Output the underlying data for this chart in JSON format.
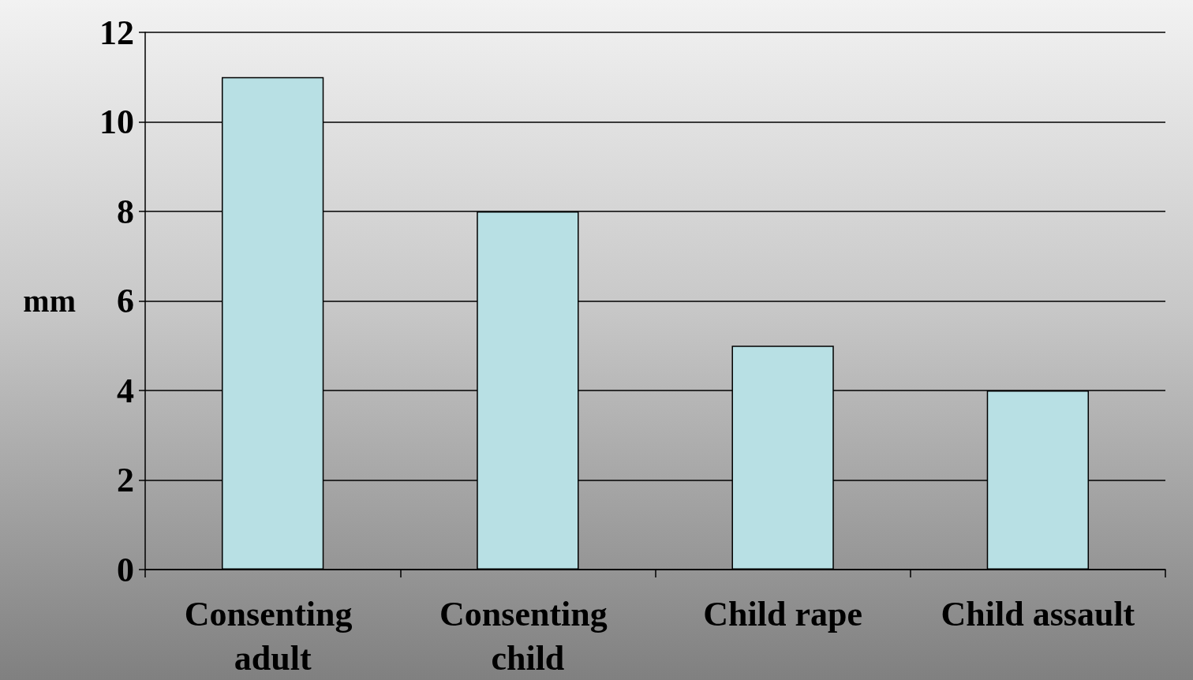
{
  "chart_data": {
    "type": "bar",
    "categories": [
      "Consenting adult",
      "Consenting child",
      "Child rape",
      "Child assault"
    ],
    "values": [
      11,
      8,
      5,
      4
    ],
    "color": "#b8e0e4",
    "ylabel": "mm",
    "ylim": [
      0,
      12
    ],
    "yticks": [
      0,
      2,
      4,
      6,
      8,
      10,
      12
    ],
    "grid": "y"
  }
}
